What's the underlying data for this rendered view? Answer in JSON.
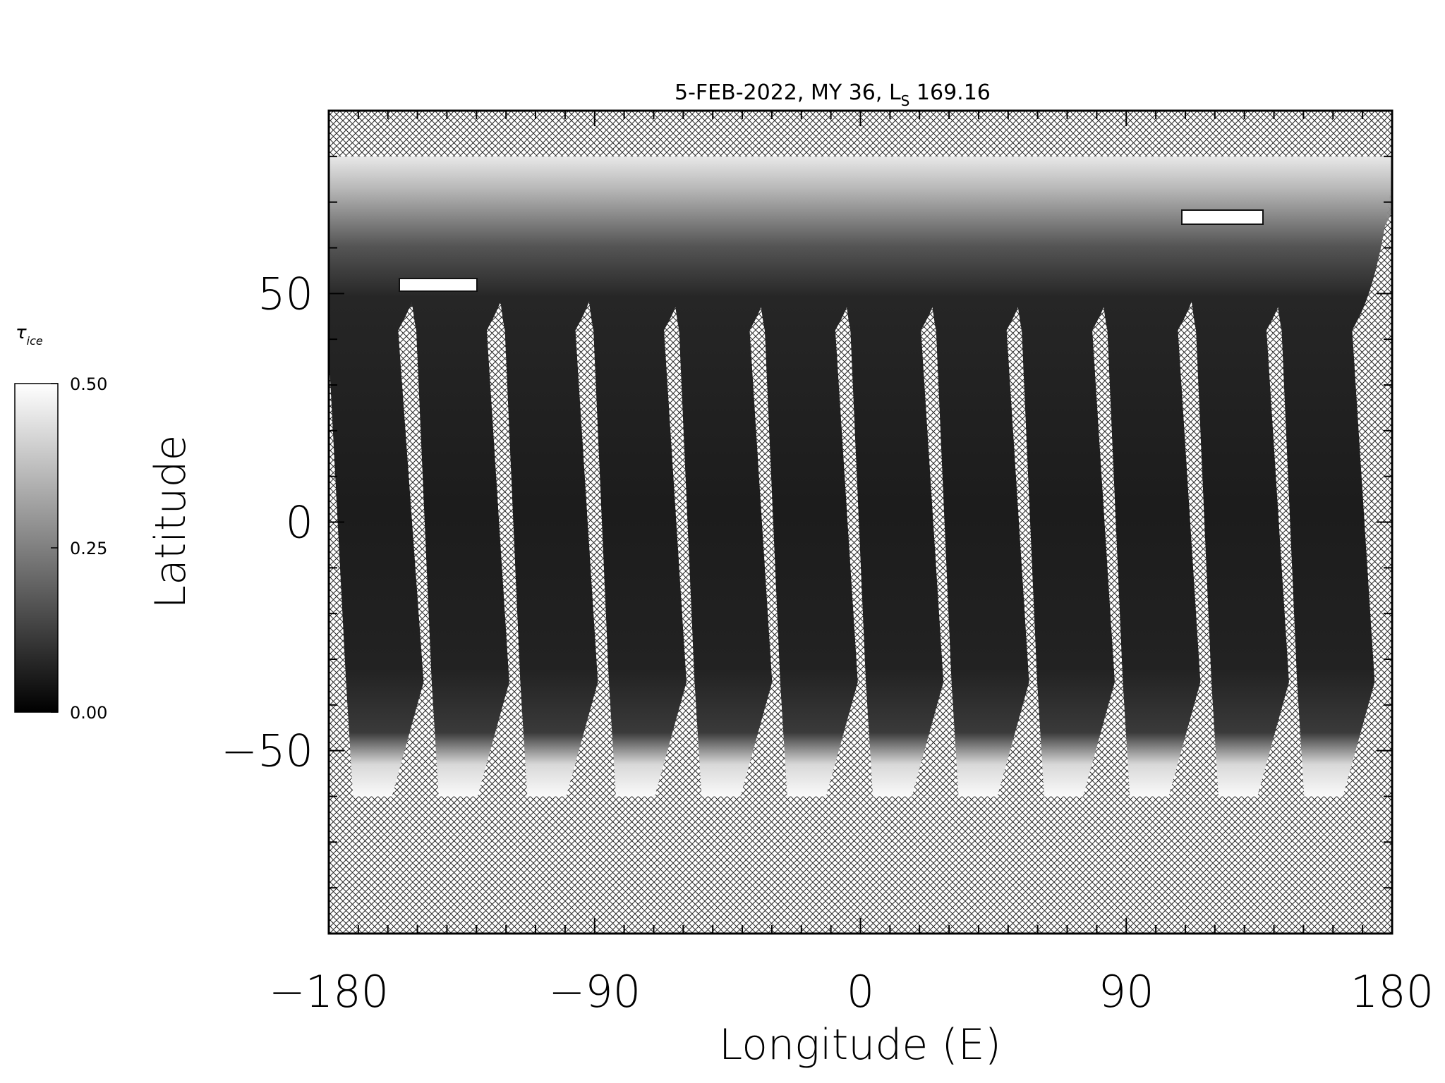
{
  "title": "5-FEB-2022, MY 36,  L",
  "title_sub": "S",
  "title_ls": " 169.16",
  "axes": {
    "xlabel": "Longitude (E)",
    "ylabel": "Latitude",
    "xlim": [
      -180,
      180
    ],
    "ylim": [
      -90,
      90
    ],
    "xticks": [
      -180,
      -90,
      0,
      90,
      180
    ],
    "yticks": [
      50,
      0,
      -50
    ],
    "xtick_labels": [
      "−180",
      "−90",
      "0",
      "90",
      "180"
    ],
    "ytick_labels": [
      "50",
      "0",
      "−50"
    ]
  },
  "colorbar": {
    "symbol": "τ",
    "subscript": "ice",
    "range": [
      0.0,
      0.5
    ],
    "tick_labels": [
      "0.50",
      "0.25",
      "0.00"
    ],
    "ticks": [
      0.5,
      0.25,
      0.0
    ],
    "colormap": "grayscale"
  },
  "chart_data": {
    "type": "heatmap",
    "description_free": true,
    "xlim": [
      -180,
      180
    ],
    "ylim": [
      -90,
      90
    ],
    "xlabel": "Longitude (E)",
    "ylabel": "Latitude",
    "no_data_pattern": "crosshatch",
    "swaths": [
      {
        "lon_bottom": -167,
        "lon_top": -178
      },
      {
        "lon_bottom": -138,
        "lon_top": -148
      },
      {
        "lon_bottom": -108,
        "lon_top": -118
      },
      {
        "lon_bottom": -78,
        "lon_top": -88
      },
      {
        "lon_bottom": -49,
        "lon_top": -59
      },
      {
        "lon_bottom": -20,
        "lon_top": -30
      },
      {
        "lon_bottom": 9,
        "lon_top": -1
      },
      {
        "lon_bottom": 38,
        "lon_top": 28
      },
      {
        "lon_bottom": 67,
        "lon_top": 57
      },
      {
        "lon_bottom": 96,
        "lon_top": 86
      },
      {
        "lon_bottom": 126,
        "lon_top": 116
      },
      {
        "lon_bottom": 155,
        "lon_top": 145
      }
    ],
    "swath_lat_range": [
      -60,
      80
    ]
  }
}
